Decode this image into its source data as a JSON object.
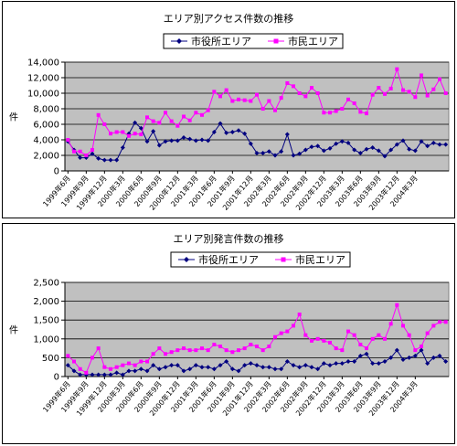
{
  "chart_data": [
    {
      "type": "line",
      "title": "エリア別アクセス件数の推移",
      "xlabel": "",
      "ylabel": "件",
      "ylim": [
        0,
        14000
      ],
      "yticks": [
        "0",
        "2,000",
        "4,000",
        "6,000",
        "8,000",
        "10,000",
        "12,000",
        "14,000"
      ],
      "ytick_values": [
        0,
        2000,
        4000,
        6000,
        8000,
        10000,
        12000,
        14000
      ],
      "grid": true,
      "legend": "top-center",
      "plot_background": "#c0c0c0",
      "x_tick_labels": [
        "1999年6月",
        "1999年9月",
        "1999年12月",
        "2000年3月",
        "2000年6月",
        "2000年9月",
        "2000年12月",
        "2001年3月",
        "2001年6月",
        "2001年9月",
        "2001年12月",
        "2002年3月",
        "2002年6月",
        "2002年9月",
        "2002年12月",
        "2003年3月",
        "2003年6月",
        "2003年9月",
        "2003年12月",
        "2004年3月"
      ],
      "series": [
        {
          "name": "市役所エリア",
          "color": "#000080",
          "marker": "diamond",
          "values": [
            3800,
            2700,
            1700,
            1700,
            2200,
            1600,
            1400,
            1400,
            1400,
            3000,
            4800,
            6200,
            5500,
            3800,
            5100,
            3300,
            3800,
            3900,
            3900,
            4300,
            4100,
            3900,
            4000,
            3900,
            5000,
            6100,
            4900,
            5000,
            5200,
            4800,
            3500,
            2300,
            2300,
            2500,
            2000,
            2500,
            4700,
            2000,
            2200,
            2700,
            3100,
            3200,
            2600,
            2900,
            3500,
            3800,
            3600,
            2700,
            2300,
            2800,
            3000,
            2600,
            1900,
            2700,
            3400,
            3900,
            2800,
            2600,
            3800,
            3200,
            3600,
            3400,
            3400
          ]
        },
        {
          "name": "市民エリア",
          "color": "#ff00ff",
          "marker": "square",
          "values": [
            4000,
            2500,
            2500,
            2000,
            2700,
            7200,
            6000,
            4800,
            5000,
            5000,
            4500,
            4800,
            4700,
            6900,
            6400,
            6200,
            7500,
            6400,
            5800,
            7000,
            6500,
            7500,
            7200,
            7800,
            10200,
            9600,
            10400,
            9000,
            9200,
            9100,
            9000,
            9800,
            8000,
            9000,
            7800,
            9400,
            11300,
            10900,
            10000,
            9600,
            10700,
            10000,
            7500,
            7500,
            7700,
            8000,
            9200,
            8700,
            7600,
            7400,
            9800,
            10700,
            9900,
            10600,
            13100,
            10400,
            10200,
            9500,
            12300,
            9700,
            10500,
            11800,
            10000
          ]
        }
      ]
    },
    {
      "type": "line",
      "title": "エリア別発言件数の推移",
      "xlabel": "",
      "ylabel": "件",
      "ylim": [
        0,
        2500
      ],
      "yticks": [
        "0",
        "500",
        "1,000",
        "1,500",
        "2,000",
        "2,500"
      ],
      "ytick_values": [
        0,
        500,
        1000,
        1500,
        2000,
        2500
      ],
      "grid": true,
      "legend": "top-center",
      "plot_background": "#c0c0c0",
      "x_tick_labels": [
        "1999年6月",
        "1999年9月",
        "1999年12月",
        "2000年3月",
        "2000年6月",
        "2000年9月",
        "2000年12月",
        "2001年3月",
        "2001年6月",
        "2001年9月",
        "2001年12月",
        "2002年3月",
        "2002年6月",
        "2002年9月",
        "2002年12月",
        "2003年3月",
        "2003年6月",
        "2003年9月",
        "2003年12月",
        "2004年3月"
      ],
      "series": [
        {
          "name": "市役所エリア",
          "color": "#000080",
          "marker": "diamond",
          "values": [
            300,
            150,
            50,
            50,
            50,
            50,
            50,
            50,
            100,
            50,
            150,
            150,
            200,
            150,
            300,
            200,
            250,
            300,
            300,
            150,
            200,
            300,
            250,
            250,
            200,
            300,
            400,
            200,
            150,
            300,
            350,
            300,
            250,
            250,
            200,
            200,
            400,
            300,
            250,
            300,
            250,
            200,
            350,
            300,
            350,
            350,
            400,
            400,
            550,
            600,
            350,
            350,
            400,
            500,
            700,
            450,
            500,
            550,
            700,
            350,
            500,
            550,
            400
          ]
        },
        {
          "name": "市民エリア",
          "color": "#ff00ff",
          "marker": "square",
          "values": [
            550,
            400,
            200,
            100,
            500,
            750,
            250,
            200,
            250,
            300,
            350,
            300,
            400,
            400,
            600,
            750,
            600,
            650,
            700,
            750,
            700,
            700,
            750,
            700,
            850,
            800,
            700,
            650,
            700,
            750,
            850,
            800,
            700,
            800,
            1050,
            1150,
            1200,
            1350,
            1650,
            1100,
            950,
            1000,
            950,
            900,
            750,
            700,
            1200,
            1100,
            850,
            750,
            1000,
            1100,
            1000,
            1400,
            1900,
            1350,
            1100,
            700,
            800,
            1150,
            1350,
            1450,
            1450
          ]
        }
      ]
    }
  ]
}
